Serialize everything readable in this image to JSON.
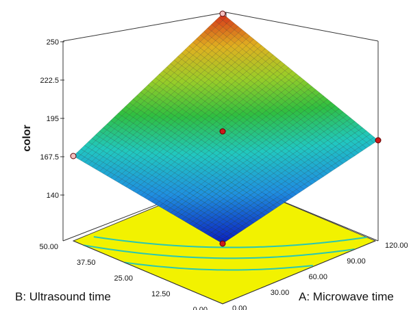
{
  "chart_data": {
    "type": "surface3d",
    "zlabel": "color",
    "xlabel": "A: Microwave time",
    "ylabel": "B: Ultrasound time",
    "x_ticks": [
      "0.00",
      "30.00",
      "60.00",
      "90.00",
      "120.00"
    ],
    "y_ticks": [
      "0.00",
      "12.50",
      "25.00",
      "37.50",
      "50.00"
    ],
    "z_ticks": [
      "140",
      "167.5",
      "195",
      "222.5",
      "250"
    ],
    "xlim": [
      0,
      120
    ],
    "ylim": [
      0,
      50
    ],
    "zlim": [
      140,
      250
    ],
    "surface_corners": [
      {
        "x": 0,
        "y": 0,
        "z": 131
      },
      {
        "x": 120,
        "y": 0,
        "z": 170
      },
      {
        "x": 0,
        "y": 50,
        "z": 167.5
      },
      {
        "x": 120,
        "y": 50,
        "z": 257
      }
    ],
    "design_points": [
      {
        "x": 0,
        "y": 0,
        "z": 131
      },
      {
        "x": 120,
        "y": 0,
        "z": 170
      },
      {
        "x": 0,
        "y": 50,
        "z": 167.5
      },
      {
        "x": 120,
        "y": 50,
        "z": 257
      },
      {
        "x": 60,
        "y": 25,
        "z": 182
      }
    ],
    "floor_contours": [
      155,
      165,
      175
    ],
    "colors": {
      "floor": "#f2f200",
      "contour": "#27c7b4",
      "point_fill": "#cc1a1a",
      "colormap": [
        "#0a1fbf",
        "#1f8fe0",
        "#21c8c0",
        "#2fbf40",
        "#9acd28",
        "#e0b020",
        "#d4301a"
      ]
    }
  }
}
